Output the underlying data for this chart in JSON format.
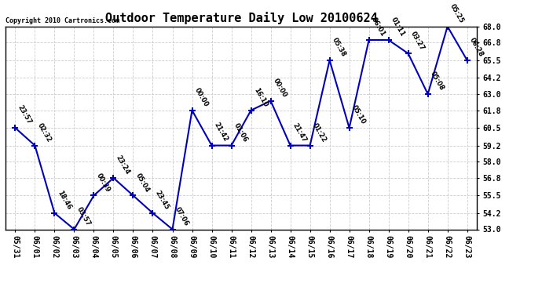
{
  "title": "Outdoor Temperature Daily Low 20100624",
  "copyright": "Copyright 2010 Cartronics.com",
  "x_labels": [
    "05/31",
    "06/01",
    "06/02",
    "06/03",
    "06/04",
    "06/05",
    "06/06",
    "06/07",
    "06/08",
    "06/09",
    "06/10",
    "06/11",
    "06/12",
    "06/13",
    "06/14",
    "06/15",
    "06/16",
    "06/17",
    "06/18",
    "06/19",
    "06/20",
    "06/21",
    "06/22",
    "06/23"
  ],
  "y_values": [
    60.5,
    59.2,
    54.2,
    53.0,
    55.5,
    56.8,
    55.5,
    54.2,
    53.0,
    61.8,
    59.2,
    59.2,
    61.8,
    62.5,
    59.2,
    59.2,
    65.5,
    60.5,
    67.0,
    67.0,
    66.0,
    63.0,
    68.0,
    65.5
  ],
  "point_labels": [
    "23:57",
    "02:32",
    "18:46",
    "03:57",
    "00:39",
    "23:24",
    "05:04",
    "23:45",
    "07:06",
    "00:00",
    "21:42",
    "01:06",
    "16:10",
    "00:00",
    "21:47",
    "01:22",
    "05:38",
    "05:10",
    "06:01",
    "01:11",
    "03:27",
    "05:08",
    "05:25",
    "06:28"
  ],
  "ylim_min": 53.0,
  "ylim_max": 68.0,
  "yticks": [
    53.0,
    54.2,
    55.5,
    56.8,
    58.0,
    59.2,
    60.5,
    61.8,
    63.0,
    64.2,
    65.5,
    66.8,
    68.0
  ],
  "line_color": "#0000bb",
  "bg_color": "#ffffff",
  "grid_color": "#cccccc",
  "title_fontsize": 11,
  "tick_fontsize": 7,
  "point_label_fontsize": 6,
  "copyright_fontsize": 6
}
